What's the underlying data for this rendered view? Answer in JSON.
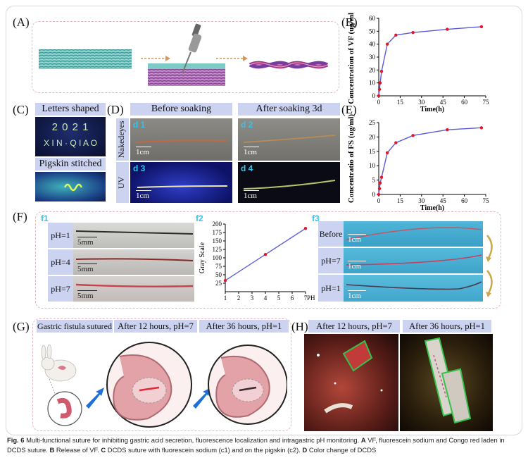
{
  "panels": {
    "A": {
      "label": "(A)"
    },
    "B": {
      "label": "(B)",
      "ylabel": "Concentration of VF (ug/ml)",
      "xlabel": "Time(h)"
    },
    "C": {
      "label": "(C)",
      "letters_header": "Letters shaped",
      "letters_text_line1": "2 0 2 1",
      "letters_text_line2": "X I N · Q I A O",
      "pigskin_header": "Pigskin stitched"
    },
    "D": {
      "label": "(D)",
      "before_header": "Before soaking",
      "after_header": "After soaking 3d",
      "row1_label": "Nakedeyes",
      "row2_label": "UV",
      "sub1": "d 1",
      "sub2": "d 2",
      "sub3": "d 3",
      "sub4": "d 4",
      "scale": "1cm"
    },
    "E": {
      "label": "(E)",
      "ylabel": "Concentratio of FS (ug/ml)",
      "xlabel": "Time(h)"
    },
    "F": {
      "label": "(F)",
      "f1": "f1",
      "f2": "f2",
      "f3": "f3",
      "ph1": "pH=1",
      "ph4": "pH=4",
      "ph7": "pH=7",
      "scale5": "5mm",
      "scale1": "1cm",
      "before": "Before",
      "ph7b": "pH=7",
      "ph1b": "pH=1",
      "ylabel": "Gray Scale",
      "xlabel": "PH"
    },
    "G": {
      "label": "(G)",
      "h1": "Gastric fistula sutured",
      "h2": "After 12 hours, pH=7",
      "h3": "After 36 hours, pH=1"
    },
    "H": {
      "label": "(H)",
      "h1": "After 12 hours, pH=7",
      "h2": "After 36 hours, pH=1"
    }
  },
  "caption": {
    "fig": "Fig. 6",
    "text1": " Multi-functional suture for inhibiting gastric acid secretion, fluorescence localization and intragastric pH monitoring. ",
    "a": "A",
    "text2": " VF, fluorescein sodium and Congo red laden in DCDS suture. ",
    "b": "B",
    "text3": " Release of VF. ",
    "c": "C",
    "text4": " DCDS suture with fluorescein sodium (c1) and on the pigskin (c2). ",
    "d": "D",
    "text5": " Color change of DCDS"
  },
  "chart_data": [
    {
      "type": "line",
      "title": "",
      "xlabel": "Time(h)",
      "ylabel": "Concentration of VF (ug/ml)",
      "xlim": [
        0,
        75
      ],
      "ylim": [
        0,
        60
      ],
      "xticks": [
        "0",
        "15",
        "30",
        "45",
        "60",
        "75"
      ],
      "yticks": [
        "0",
        "10",
        "20",
        "30",
        "40",
        "50",
        "60"
      ],
      "x": [
        0,
        0.5,
        1,
        2,
        6,
        12,
        24,
        48,
        72
      ],
      "series": [
        {
          "name": "VF",
          "values": [
            0,
            5,
            10,
            19,
            40,
            47,
            49,
            51.5,
            53.5
          ]
        }
      ]
    },
    {
      "type": "line",
      "title": "",
      "xlabel": "Time(h)",
      "ylabel": "Concentratio of FS (ug/ml)",
      "xlim": [
        0,
        75
      ],
      "ylim": [
        0,
        25
      ],
      "xticks": [
        "0",
        "15",
        "30",
        "45",
        "60",
        "75"
      ],
      "yticks": [
        "0",
        "5",
        "10",
        "15",
        "20",
        "25"
      ],
      "x": [
        0,
        0.5,
        1,
        2,
        6,
        12,
        24,
        48,
        72
      ],
      "series": [
        {
          "name": "FS",
          "values": [
            0,
            2,
            4,
            6,
            14.5,
            18,
            20.5,
            22.5,
            23.2
          ]
        }
      ]
    },
    {
      "type": "line",
      "title": "",
      "xlabel": "PH",
      "ylabel": "Gray Scale",
      "xlim": [
        1,
        7
      ],
      "ylim": [
        0,
        200
      ],
      "xticks": [
        "1",
        "2",
        "3",
        "4",
        "5",
        "6",
        "7"
      ],
      "yticks": [
        "25",
        "50",
        "75",
        "100",
        "125",
        "150",
        "175",
        "200"
      ],
      "x": [
        1,
        4,
        7
      ],
      "series": [
        {
          "name": "Gray",
          "values": [
            33,
            110,
            187
          ]
        }
      ]
    }
  ]
}
